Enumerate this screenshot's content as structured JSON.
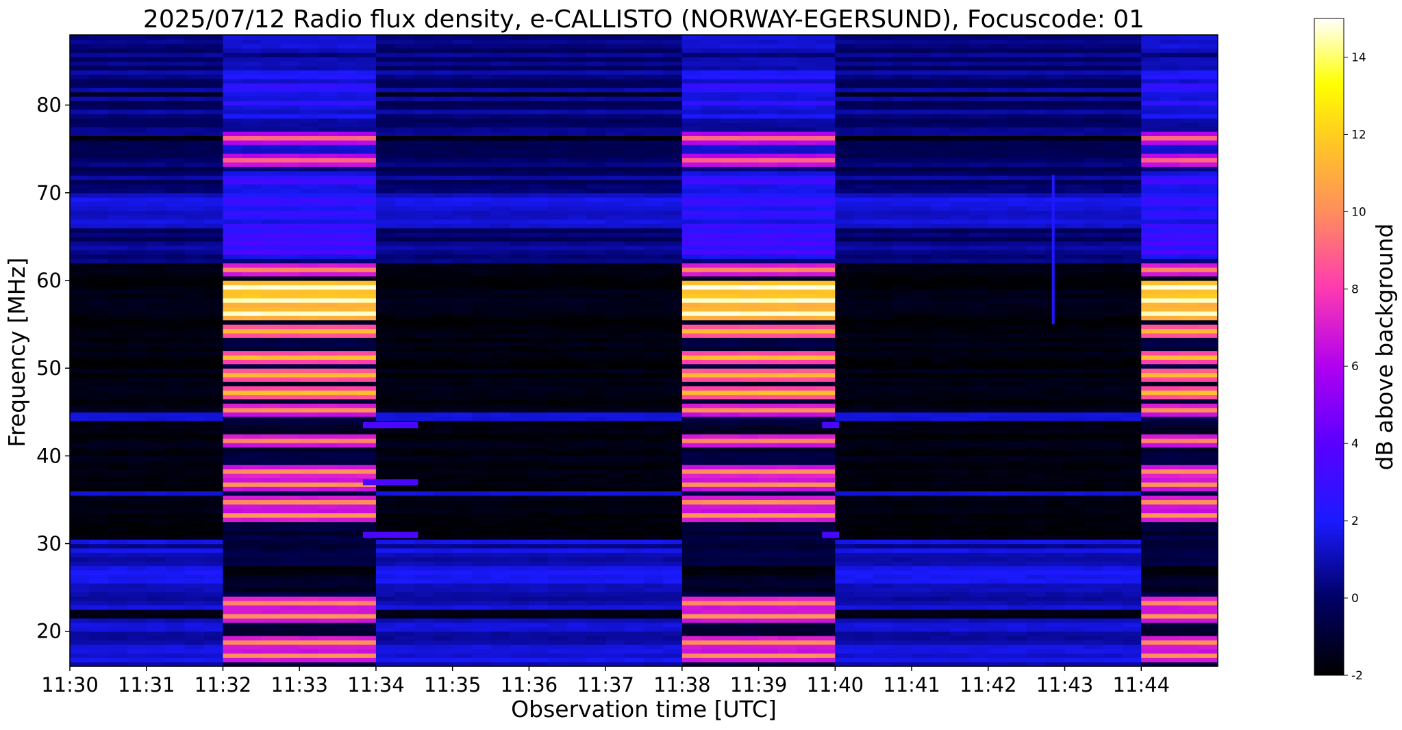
{
  "chart_data": {
    "type": "heatmap",
    "title": "2025/07/12  Radio flux density, e-CALLISTO (NORWAY-EGERSUND), Focuscode: 01",
    "xlabel": "Observation time [UTC]",
    "ylabel": "Frequency [MHz]",
    "x_ticks": [
      "11:30",
      "11:31",
      "11:32",
      "11:33",
      "11:34",
      "11:35",
      "11:36",
      "11:37",
      "11:38",
      "11:39",
      "11:40",
      "11:41",
      "11:42",
      "11:43",
      "11:44"
    ],
    "x_range_minutes": [
      0,
      15
    ],
    "y_ticks": [
      20,
      30,
      40,
      50,
      60,
      70,
      80
    ],
    "ylim": [
      16,
      88
    ],
    "colorbar": {
      "label": "dB above background",
      "ticks": [
        -2,
        0,
        2,
        4,
        6,
        8,
        10,
        12,
        14
      ],
      "range": [
        -2,
        15
      ],
      "colormap": "gnuplot2"
    },
    "calibration_bursts_minutes": [
      [
        2.0,
        3.83
      ],
      [
        8.0,
        9.83
      ],
      [
        14.0,
        15.0
      ]
    ],
    "background_split_mhz": 61.8,
    "strong_bands_mhz": [
      17,
      18.5,
      21.5,
      23,
      33,
      34.5,
      36.5,
      38,
      41.5,
      45,
      47,
      49,
      51,
      54,
      56,
      57.5,
      59,
      61,
      73.5,
      76
    ],
    "narrowband_events": [
      {
        "t_start": 3.83,
        "t_end": 4.55,
        "freq": 43.5
      },
      {
        "t_start": 3.83,
        "t_end": 4.55,
        "freq": 31
      },
      {
        "t_start": 3.83,
        "t_end": 4.55,
        "freq": 37
      },
      {
        "t_start": 9.83,
        "t_end": 10.05,
        "freq": 43.5
      },
      {
        "t_start": 9.83,
        "t_end": 10.05,
        "freq": 31
      }
    ],
    "spike_event": {
      "t": 12.85,
      "f_low": 55,
      "f_high": 72
    }
  }
}
